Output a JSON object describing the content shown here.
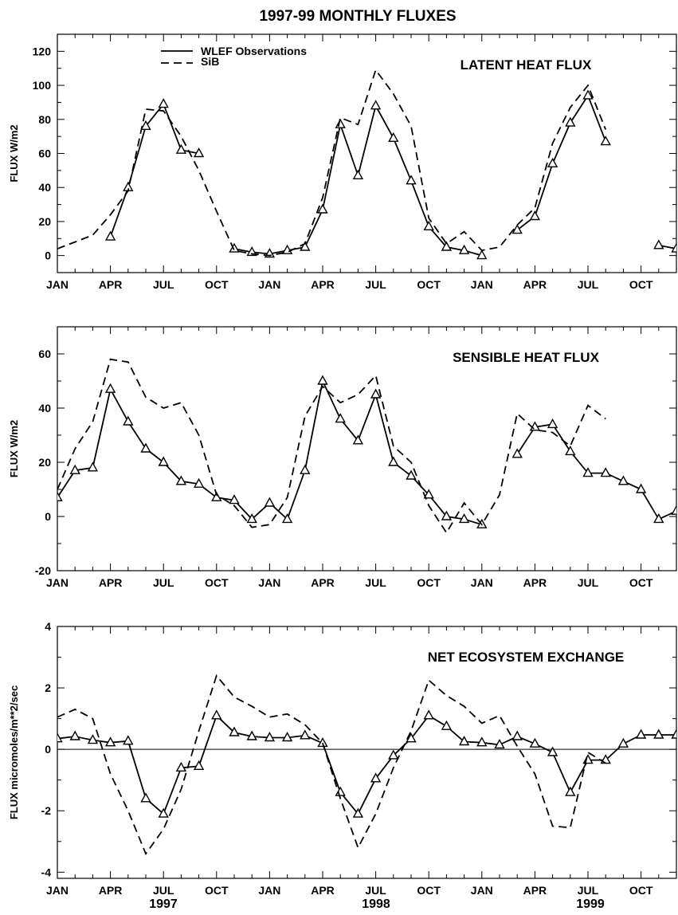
{
  "title": "1997-99 MONTHLY FLUXES",
  "legend": {
    "observations_label": "WLEF Observations",
    "model_label": "SiB"
  },
  "x_tick_labels": [
    "JAN",
    "APR",
    "JUL",
    "OCT",
    "JAN",
    "APR",
    "JUL",
    "OCT",
    "JAN",
    "APR",
    "JUL",
    "OCT"
  ],
  "year_labels": [
    "1997",
    "1998",
    "1999"
  ],
  "chart_data": [
    {
      "type": "line",
      "title": "LATENT HEAT FLUX",
      "ylabel": "FLUX  W/m2",
      "xlim": [
        1,
        36
      ],
      "ylim": [
        -10,
        130
      ],
      "yticks": [
        0,
        20,
        40,
        60,
        80,
        100,
        120
      ],
      "series": [
        {
          "name": "WLEF Observations",
          "style": "solid-triangles",
          "x": [
            4,
            5,
            6,
            7,
            8,
            9,
            11,
            12,
            13,
            14,
            15,
            16,
            17,
            18,
            19,
            20,
            21,
            22,
            23,
            24,
            25,
            27,
            28,
            29,
            30,
            31,
            32,
            35,
            36
          ],
          "y": [
            11,
            40,
            76,
            89,
            62,
            60,
            4,
            2,
            1,
            3,
            5,
            27,
            77,
            47,
            88,
            69,
            44,
            17,
            5,
            3,
            0,
            15,
            23,
            54,
            78,
            94,
            67,
            6,
            4
          ]
        },
        {
          "name": "SiB",
          "style": "dashed",
          "x": [
            1,
            2,
            3,
            4,
            5,
            6,
            7,
            8,
            9,
            10,
            11,
            12,
            13,
            14,
            15,
            16,
            17,
            18,
            19,
            20,
            21,
            22,
            23,
            24,
            25,
            26,
            27,
            28,
            29,
            30,
            31,
            32
          ],
          "y": [
            4,
            8,
            12,
            24,
            38,
            86,
            85,
            70,
            50,
            26,
            3,
            1,
            0,
            2,
            7,
            34,
            81,
            77,
            109,
            95,
            76,
            22,
            7,
            14,
            3,
            5,
            18,
            28,
            66,
            87,
            100,
            74
          ]
        }
      ]
    },
    {
      "type": "line",
      "title": "SENSIBLE HEAT FLUX",
      "ylabel": "FLUX  W/m2",
      "xlim": [
        1,
        36
      ],
      "ylim": [
        -20,
        70
      ],
      "yticks": [
        -20,
        0,
        20,
        40,
        60
      ],
      "series": [
        {
          "name": "WLEF Observations",
          "style": "solid-triangles",
          "x": [
            1,
            2,
            3,
            4,
            5,
            6,
            7,
            8,
            9,
            10,
            11,
            12,
            13,
            14,
            15,
            16,
            17,
            18,
            19,
            20,
            21,
            22,
            23,
            24,
            25,
            27,
            28,
            29,
            30,
            31,
            32,
            33,
            34,
            35,
            36
          ],
          "y": [
            7,
            17,
            18,
            47,
            35,
            25,
            20,
            13,
            12,
            7,
            6,
            -1,
            5,
            -1,
            17,
            50,
            36,
            28,
            45,
            20,
            15,
            8,
            0,
            -1,
            -3,
            23,
            33,
            34,
            24,
            16,
            16,
            13,
            10,
            -1,
            2
          ]
        },
        {
          "name": "SiB",
          "style": "dashed",
          "x": [
            1,
            2,
            3,
            4,
            5,
            6,
            7,
            8,
            9,
            10,
            11,
            12,
            13,
            14,
            15,
            16,
            17,
            18,
            19,
            20,
            21,
            22,
            23,
            24,
            25,
            26,
            27,
            28,
            29,
            30,
            31,
            32
          ],
          "y": [
            10,
            25,
            35,
            58,
            57,
            44,
            40,
            42,
            30,
            8,
            4,
            -4,
            -3,
            7,
            37,
            48,
            42,
            45,
            52,
            26,
            20,
            4,
            -6,
            5,
            -3,
            8,
            38,
            32,
            31,
            26,
            41,
            36
          ]
        }
      ]
    },
    {
      "type": "line",
      "title": "NET ECOSYSTEM EXCHANGE",
      "ylabel": "FLUX micromoles/m**2/sec",
      "xlim": [
        1,
        36
      ],
      "ylim": [
        -4.2,
        4
      ],
      "yticks": [
        -4,
        -2,
        0,
        2,
        4
      ],
      "zero_line": true,
      "series": [
        {
          "name": "WLEF Observations",
          "style": "solid-triangles",
          "x": [
            1,
            2,
            3,
            4,
            5,
            6,
            7,
            8,
            9,
            10,
            11,
            12,
            13,
            14,
            15,
            16,
            17,
            18,
            19,
            20,
            21,
            22,
            23,
            24,
            25,
            26,
            27,
            28,
            29,
            30,
            31,
            32,
            33,
            34,
            35,
            36
          ],
          "y": [
            0.35,
            0.42,
            0.3,
            0.22,
            0.27,
            -1.6,
            -2.1,
            -0.6,
            -0.55,
            1.1,
            0.55,
            0.42,
            0.38,
            0.38,
            0.45,
            0.2,
            -1.4,
            -2.1,
            -0.95,
            -0.2,
            0.35,
            1.1,
            0.75,
            0.25,
            0.22,
            0.15,
            0.42,
            0.18,
            -0.1,
            -1.4,
            -0.35,
            -0.35,
            0.18,
            0.47,
            0.47,
            0.47
          ]
        },
        {
          "name": "SiB",
          "style": "dashed",
          "x": [
            1,
            2,
            3,
            4,
            5,
            6,
            7,
            8,
            9,
            10,
            11,
            12,
            13,
            14,
            15,
            16,
            17,
            18,
            19,
            20,
            21,
            22,
            23,
            24,
            25,
            26,
            27,
            28,
            29,
            30,
            31,
            32
          ],
          "y": [
            1.05,
            1.3,
            1.0,
            -0.8,
            -2.0,
            -3.4,
            -2.6,
            -1.3,
            0.6,
            2.4,
            1.7,
            1.4,
            1.05,
            1.15,
            0.8,
            0.2,
            -1.6,
            -3.2,
            -2.1,
            -0.6,
            0.6,
            2.25,
            1.75,
            1.4,
            0.85,
            1.1,
            0.1,
            -0.8,
            -2.5,
            -2.55,
            -0.1,
            -0.45
          ]
        }
      ]
    }
  ]
}
